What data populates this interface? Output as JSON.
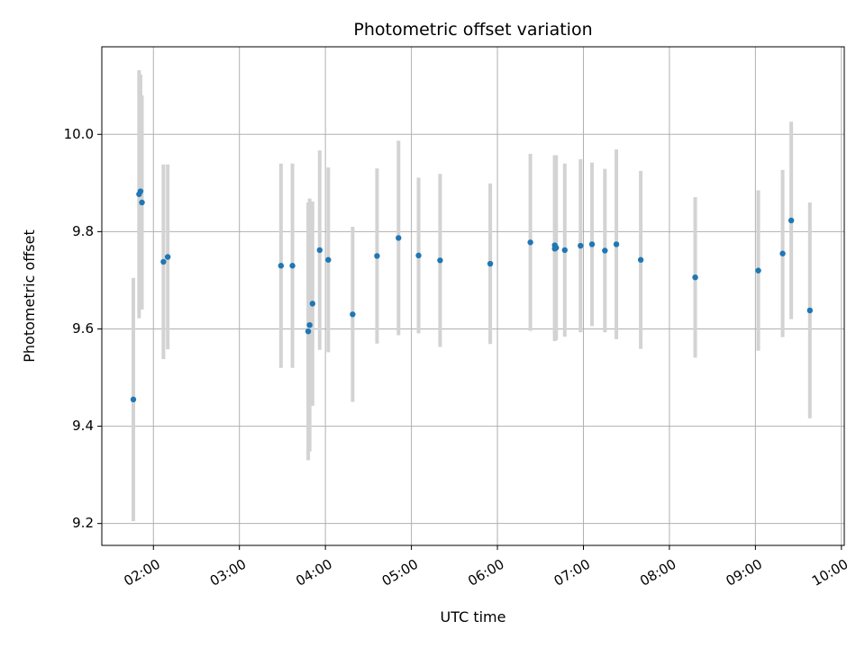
{
  "chart_data": {
    "type": "scatter",
    "title": "Photometric offset variation",
    "xlabel": "UTC time",
    "ylabel": "Photometric offset",
    "x_tick_labels": [
      "02:00",
      "03:00",
      "04:00",
      "05:00",
      "06:00",
      "07:00",
      "08:00",
      "09:00",
      "10:00"
    ],
    "x_ticks": [
      "02:00",
      "03:00",
      "04:00",
      "05:00",
      "06:00",
      "07:00",
      "08:00",
      "09:00",
      "10:00"
    ],
    "y_ticks": [
      9.2,
      9.4,
      9.6,
      9.8,
      10.0
    ],
    "y_tick_labels": [
      "9.2",
      "9.4",
      "9.6",
      "9.8",
      "10.0"
    ],
    "xlim": [
      "01:24",
      "10:02"
    ],
    "ylim": [
      9.155,
      10.18
    ],
    "grid": true,
    "colors": {
      "point": "#1f77b4",
      "errorbar": "#d3d3d3",
      "grid": "#b0b0b0"
    },
    "points": [
      {
        "x": "01:46",
        "y": 9.455,
        "err": 0.25
      },
      {
        "x": "01:50",
        "y": 9.877,
        "err": 0.255
      },
      {
        "x": "01:51",
        "y": 9.883,
        "err": 0.24
      },
      {
        "x": "01:52",
        "y": 9.86,
        "err": 0.22
      },
      {
        "x": "02:07",
        "y": 9.738,
        "err": 0.2
      },
      {
        "x": "02:10",
        "y": 9.748,
        "err": 0.19
      },
      {
        "x": "03:29",
        "y": 9.73,
        "err": 0.21
      },
      {
        "x": "03:37",
        "y": 9.73,
        "err": 0.21
      },
      {
        "x": "03:48",
        "y": 9.595,
        "err": 0.265
      },
      {
        "x": "03:49",
        "y": 9.608,
        "err": 0.26
      },
      {
        "x": "03:51",
        "y": 9.652,
        "err": 0.21
      },
      {
        "x": "03:56",
        "y": 9.762,
        "err": 0.205
      },
      {
        "x": "04:02",
        "y": 9.742,
        "err": 0.19
      },
      {
        "x": "04:19",
        "y": 9.63,
        "err": 0.18
      },
      {
        "x": "04:36",
        "y": 9.75,
        "err": 0.18
      },
      {
        "x": "04:51",
        "y": 9.787,
        "err": 0.2
      },
      {
        "x": "05:05",
        "y": 9.751,
        "err": 0.16
      },
      {
        "x": "05:20",
        "y": 9.741,
        "err": 0.178
      },
      {
        "x": "05:55",
        "y": 9.734,
        "err": 0.165
      },
      {
        "x": "06:23",
        "y": 9.778,
        "err": 0.182
      },
      {
        "x": "06:40",
        "y": 9.765,
        "err": 0.19
      },
      {
        "x": "06:40",
        "y": 9.772,
        "err": 0.185
      },
      {
        "x": "06:41",
        "y": 9.767,
        "err": 0.19
      },
      {
        "x": "06:47",
        "y": 9.762,
        "err": 0.178
      },
      {
        "x": "06:58",
        "y": 9.771,
        "err": 0.178
      },
      {
        "x": "07:06",
        "y": 9.774,
        "err": 0.168
      },
      {
        "x": "07:15",
        "y": 9.761,
        "err": 0.168
      },
      {
        "x": "07:23",
        "y": 9.774,
        "err": 0.195
      },
      {
        "x": "07:40",
        "y": 9.742,
        "err": 0.183
      },
      {
        "x": "08:18",
        "y": 9.706,
        "err": 0.165
      },
      {
        "x": "09:02",
        "y": 9.72,
        "err": 0.165
      },
      {
        "x": "09:19",
        "y": 9.755,
        "err": 0.172
      },
      {
        "x": "09:25",
        "y": 9.823,
        "err": 0.203
      },
      {
        "x": "09:38",
        "y": 9.638,
        "err": 0.222
      }
    ]
  }
}
